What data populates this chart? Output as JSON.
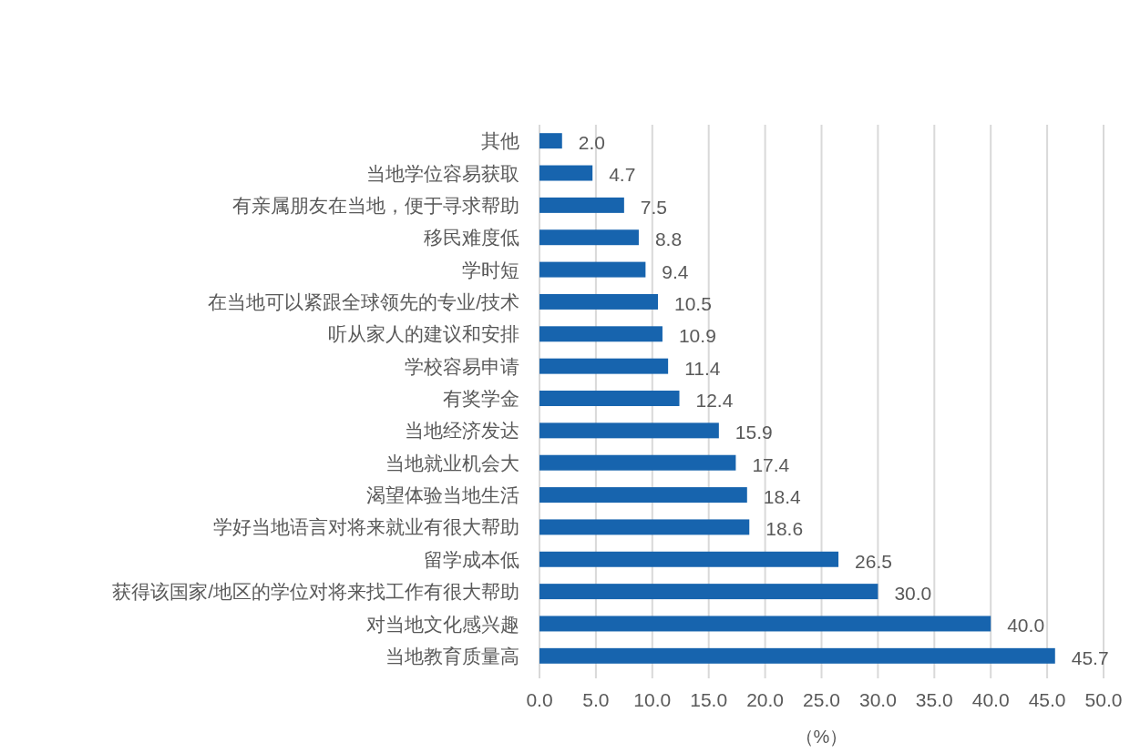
{
  "chart_data": {
    "type": "bar",
    "orientation": "horizontal",
    "xlabel": "（%）",
    "categories": [
      "其他",
      "当地学位容易获取",
      "有亲属朋友在当地，便于寻求帮助",
      "移民难度低",
      "学时短",
      "在当地可以紧跟全球领先的专业/技术",
      "听从家人的建议和安排",
      "学校容易申请",
      "有奖学金",
      "当地经济发达",
      "当地就业机会大",
      "渴望体验当地生活",
      "学好当地语言对将来就业有很大帮助",
      "留学成本低",
      "获得该国家/地区的学位对将来找工作有很大帮助",
      "对当地文化感兴趣",
      "当地教育质量高"
    ],
    "values": [
      2.0,
      4.7,
      7.5,
      8.8,
      9.4,
      10.5,
      10.9,
      11.4,
      12.4,
      15.9,
      17.4,
      18.4,
      18.6,
      26.5,
      30.0,
      40.0,
      45.7
    ],
    "value_labels": [
      "2.0",
      "4.7",
      "7.5",
      "8.8",
      "9.4",
      "10.5",
      "10.9",
      "11.4",
      "12.4",
      "15.9",
      "17.4",
      "18.4",
      "18.6",
      "26.5",
      "30.0",
      "40.0",
      "45.7"
    ],
    "color": "#1764ae",
    "xlim": [
      0,
      50
    ],
    "xticks": [
      {
        "value": 0,
        "label": "0.0"
      },
      {
        "value": 5,
        "label": "5.0"
      },
      {
        "value": 10,
        "label": "10.0"
      },
      {
        "value": 15,
        "label": "15.0"
      },
      {
        "value": 20,
        "label": "20.0"
      },
      {
        "value": 25,
        "label": "25.0"
      },
      {
        "value": 30,
        "label": "30.0"
      },
      {
        "value": 35,
        "label": "35.0"
      },
      {
        "value": 40,
        "label": "40.0"
      },
      {
        "value": 45,
        "label": "45.0"
      },
      {
        "value": 50,
        "label": "50.0"
      }
    ],
    "grid": "x"
  }
}
